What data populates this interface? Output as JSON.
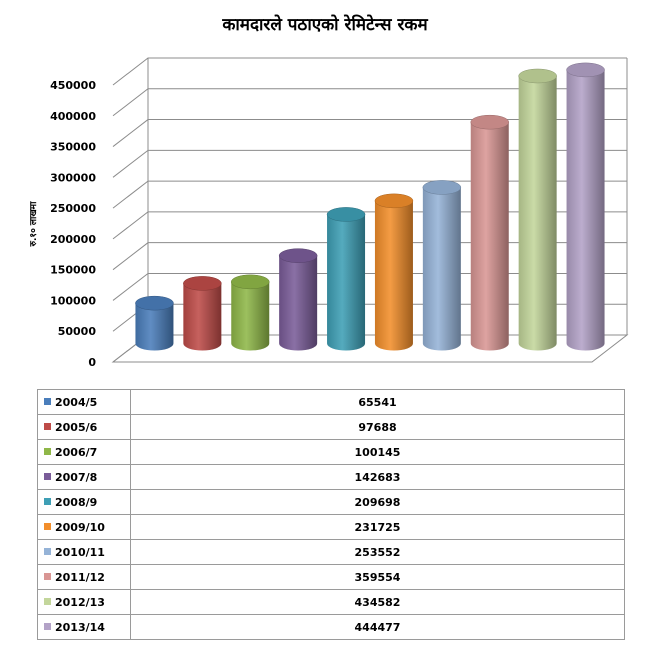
{
  "chart_data": {
    "type": "bar",
    "title": "कामदारले पठाएको रेमिटेन्स रकम",
    "ylabel": "रु.१० लाखमा",
    "ylim": [
      0,
      450000
    ],
    "yticks": [
      "0",
      "50000",
      "100000",
      "150000",
      "200000",
      "250000",
      "300000",
      "350000",
      "400000",
      "450000"
    ],
    "grid": true,
    "categories": [
      "2004/5",
      "2005/6",
      "2006/7",
      "2007/8",
      "2008/9",
      "2009/10",
      "2010/11",
      "2011/12",
      "2012/13",
      "2013/14"
    ],
    "values": [
      65541,
      97688,
      100145,
      142683,
      209698,
      231725,
      253552,
      359554,
      434582,
      444477
    ],
    "colors": [
      "#4a7ebb",
      "#be4b48",
      "#8fb748",
      "#7a5c99",
      "#3e9fb5",
      "#f28e2b",
      "#95b3d7",
      "#d99694",
      "#c3d69b",
      "#b3a2c7"
    ]
  }
}
